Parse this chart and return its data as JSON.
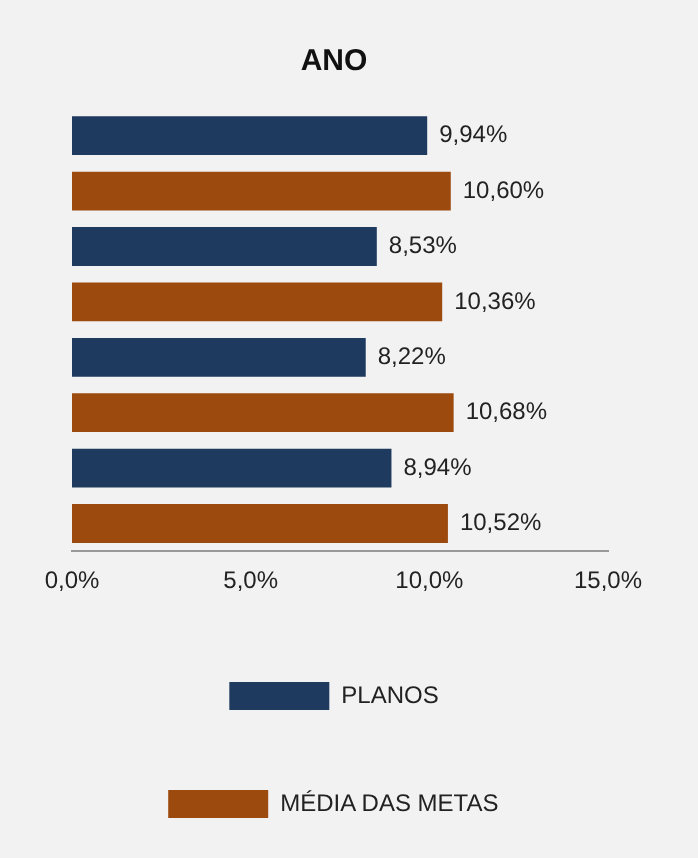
{
  "chart_data": {
    "type": "bar",
    "orientation": "horizontal",
    "title": "ANO",
    "categories": [
      null,
      null,
      null,
      null
    ],
    "series": [
      {
        "name": "PLANOS",
        "color": "#1f3a5f",
        "values": [
          9.94,
          8.53,
          8.22,
          8.94
        ],
        "value_labels": [
          "9,94%",
          "8,53%",
          "8,22%",
          "8,94%"
        ]
      },
      {
        "name": "MÉDIA DAS METAS",
        "color": "#9c4a0e",
        "values": [
          10.6,
          10.36,
          10.68,
          10.52
        ],
        "value_labels": [
          "10,60%",
          "10,36%",
          "10,68%",
          "10,52%"
        ]
      }
    ],
    "xlim": [
      0,
      15
    ],
    "xticks": [
      {
        "value": 0,
        "label": "0,0%"
      },
      {
        "value": 5,
        "label": "5,0%"
      },
      {
        "value": 10,
        "label": "10,0%"
      },
      {
        "value": 15,
        "label": "15,0%"
      }
    ],
    "grid": false,
    "legend": "bottom"
  }
}
